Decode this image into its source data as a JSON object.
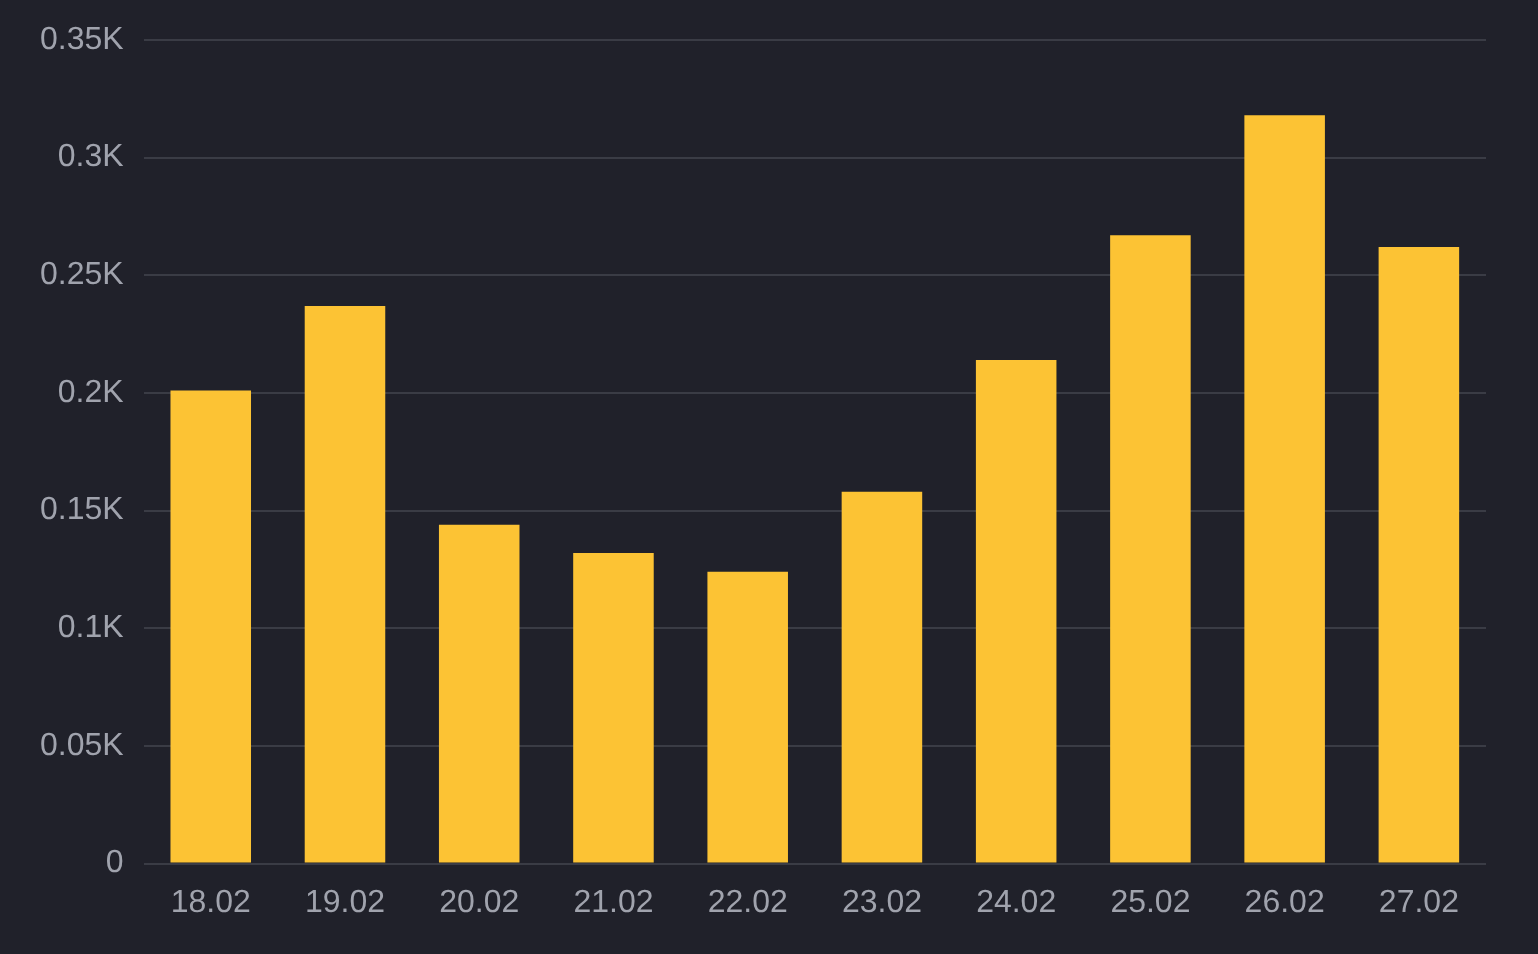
{
  "chart_data": {
    "type": "bar",
    "categories": [
      "18.02",
      "19.02",
      "20.02",
      "21.02",
      "22.02",
      "23.02",
      "24.02",
      "25.02",
      "26.02",
      "27.02"
    ],
    "values": [
      201,
      237,
      144,
      132,
      124,
      158,
      214,
      267,
      318,
      262
    ],
    "color": "#fcc334",
    "ylim": [
      0,
      350
    ],
    "yticks": [
      0,
      {
        "value": 50,
        "label": "0.05K"
      },
      {
        "value": 100,
        "label": "0.1K"
      },
      {
        "value": 150,
        "label": "0.15K"
      },
      {
        "value": 200,
        "label": "0.2K"
      },
      {
        "value": 250,
        "label": "0.25K"
      },
      {
        "value": 300,
        "label": "0.3K"
      },
      {
        "value": 350,
        "label": "0.35K"
      }
    ],
    "grid": "y"
  }
}
